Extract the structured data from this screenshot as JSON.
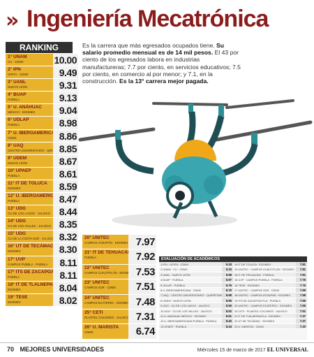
{
  "header": {
    "title": "Ingeniería Mecatrónica"
  },
  "ranking": {
    "heading": "RANKING",
    "col1": [
      {
        "pos": "1°",
        "name": "UNAM",
        "sub": "CU · CDMX",
        "value": "10.00"
      },
      {
        "pos": "2°",
        "name": "IPN",
        "sub": "UPIITA · CDMX",
        "value": "9.49"
      },
      {
        "pos": "3°",
        "name": "UANL",
        "sub": "NUEVO LEÓN",
        "value": "9.31"
      },
      {
        "pos": "4°",
        "name": "BUAP",
        "sub": "PUEBLA",
        "value": "9.13"
      },
      {
        "pos": "5°",
        "name": "U. ANÁHUAC",
        "sub": "MÉXICO · EDOMEX",
        "value": "9.04"
      },
      {
        "pos": "6°",
        "name": "UDLAP",
        "sub": "PUEBLA",
        "value": "8.98"
      },
      {
        "pos": "7°",
        "name": "U. IBEROAMERICANA",
        "sub": "CDMX",
        "value": "8.86"
      },
      {
        "pos": "8°",
        "name": "UAQ",
        "sub": "CENTRO UNIVERSITARIO · QRO",
        "value": "8.85"
      },
      {
        "pos": "9°",
        "name": "UDEM",
        "sub": "NUEVO LEÓN",
        "value": "8.67"
      },
      {
        "pos": "10°",
        "name": "UPAEP",
        "sub": "PUEBLA",
        "value": "8.61"
      },
      {
        "pos": "11°",
        "name": "IT DE TOLUCA",
        "sub": "EDOMEX",
        "value": "8.59"
      },
      {
        "pos": "12°",
        "name": "U. IBEROAMERICANA",
        "sub": "PUEBLA",
        "value": "8.47"
      },
      {
        "pos": "13°",
        "name": "UDG",
        "sub": "CU DE LOS LAGOS · JALISCO",
        "value": "8.44"
      },
      {
        "pos": "14°",
        "name": "UDG",
        "sub": "CU DE LOS VALLES · JALISCO",
        "value": "8.35"
      },
      {
        "pos": "15°",
        "name": "UDG",
        "sub": "CU DE LA COSTA SUR · JALISCO",
        "value": "8.32"
      },
      {
        "pos": "16°",
        "name": "UT DE TECÁMAC",
        "sub": "EDOMEX",
        "value": "8.30"
      },
      {
        "pos": "17°",
        "name": "UVP",
        "sub": "CAMPUS PUEBLA · PUEBLA",
        "value": "8.11"
      },
      {
        "pos": "17°",
        "name": "ITS DE ZACAPOAXTLA",
        "sub": "PUEBLA",
        "value": "8.11"
      },
      {
        "pos": "18°",
        "name": "IT DE TLALNEPANTLA",
        "sub": "EDOMEX",
        "value": "8.04"
      },
      {
        "pos": "19°",
        "name": "TESE",
        "sub": "EDOMEX",
        "value": "8.02"
      }
    ],
    "col2": [
      {
        "pos": "20°",
        "name": "UNITEC",
        "sub": "CAMPUS ATIZAPÁN · EDOMEX",
        "value": "7.97"
      },
      {
        "pos": "21°",
        "name": "IT DE TEHUACÁN",
        "sub": "PUEBLA",
        "value": "7.92"
      },
      {
        "pos": "22°",
        "name": "UNITEC",
        "sub": "CAMPUS CUAUTITLÁN · EDOMEX",
        "value": "7.53"
      },
      {
        "pos": "23°",
        "name": "UNITEC",
        "sub": "CAMPUS SUR · CDMX",
        "value": "7.51"
      },
      {
        "pos": "24°",
        "name": "UNITEC",
        "sub": "CAMPUS ECATEPEC · EDOMEX",
        "value": "7.48"
      },
      {
        "pos": "25°",
        "name": "CETI",
        "sub": "PLANTEL COLOMOS · JALISCO",
        "value": "7.31"
      },
      {
        "pos": "26°",
        "name": "U. MARISTA",
        "sub": "CDMX",
        "value": "6.74"
      }
    ]
  },
  "intro": {
    "line1": "Es la carrera que más egresados ocupados tiene.",
    "salary": "Su salario promedio mensual es de 14 mil pesos.",
    "body": "El 43 por ciento de los egresados labora en industrias manufactureras; 7.7 por ciento, en servicios educativos; 7.5 por ciento, en comercio al por menor; y 7.1, en la construcción.",
    "highlight": "Es la 13° carrera mejor pagada."
  },
  "evaluation": {
    "heading": "EVALUACIÓN DE ACADÉMICOS",
    "left": [
      {
        "name": "1 IPN - UPIITA · CDMX",
        "value": "9.18"
      },
      {
        "name": "2 UNAM · CU · CDMX",
        "value": "9.15"
      },
      {
        "name": "3 UANL · NUEVO LEÓN",
        "value": "8.98"
      },
      {
        "name": "4 BUAP · PUEBLA",
        "value": "8.97"
      },
      {
        "name": "5 UDLAP · PUEBLA",
        "value": "8.76"
      },
      {
        "name": "6 U. IBEROAMERICANA · CDMX",
        "value": "8.75"
      },
      {
        "name": "7 UAQ · CENTRO UNIVERSITARIO · QUERÉTARO",
        "value": "8.68"
      },
      {
        "name": "8 UDEM · NUEVO LEÓN",
        "value": "8.56"
      },
      {
        "name": "9 UDG · CU DE LOS LAGOS · JALISCO",
        "value": "8.56"
      },
      {
        "name": "10 UDG · CU DE LOS VALLES · JALISCO",
        "value": "8.52"
      },
      {
        "name": "11 U. ANÁHUAC MÉXICO · EDOMEX",
        "value": "8.51"
      },
      {
        "name": "12 U. IBEROAMERICANA PUEBLA · PUEBLA",
        "value": "8.40"
      },
      {
        "name": "13 UPAEP · PUEBLA",
        "value": "8.34"
      }
    ],
    "right": [
      {
        "name": "14 IT DE TOLUCA · EDOMEX",
        "value": "7.81"
      },
      {
        "name": "15 UNITEC · CAMPUS CUAUTITLÁN · EDOMEX",
        "value": "7.81"
      },
      {
        "name": "16 IT DE TEHUACÁN · PUEBLA",
        "value": "7.81"
      },
      {
        "name": "16 UVP · CAMPUS PUEBLA · PUEBLA",
        "value": "7.76"
      },
      {
        "name": "16 TESE · EDOMEX",
        "value": "7.76"
      },
      {
        "name": "17 UNITEC · CAMPUS SUR · CDMX",
        "value": "7.69"
      },
      {
        "name": "18 UNITEC · CAMPUS ATIZAPÁN · EDOMEX",
        "value": "7.58"
      },
      {
        "name": "19 ITS DE ZACAPOAXTLA · PUEBLA",
        "value": "7.55"
      },
      {
        "name": "20 UNITEC · CAMPUS ECATEPEC · EDOMEX",
        "value": "7.55"
      },
      {
        "name": "20 CETI · PLANTEL COLOMOS · JALISCO",
        "value": "7.51"
      },
      {
        "name": "21 IT DE TLALNEPANTLA · EDOMEX",
        "value": "7.47"
      },
      {
        "name": "22 UT DE TECÁMAC · EDOMEX",
        "value": "7.37"
      },
      {
        "name": "23 U. MARISTA · CDMX",
        "value": "7.20"
      }
    ]
  },
  "footer": {
    "page": "70",
    "section": "MEJORES UNIVERSIDADES",
    "date": "Miércoles 15 de marzo de 2017",
    "brand": "EL UNIVERSAL"
  }
}
